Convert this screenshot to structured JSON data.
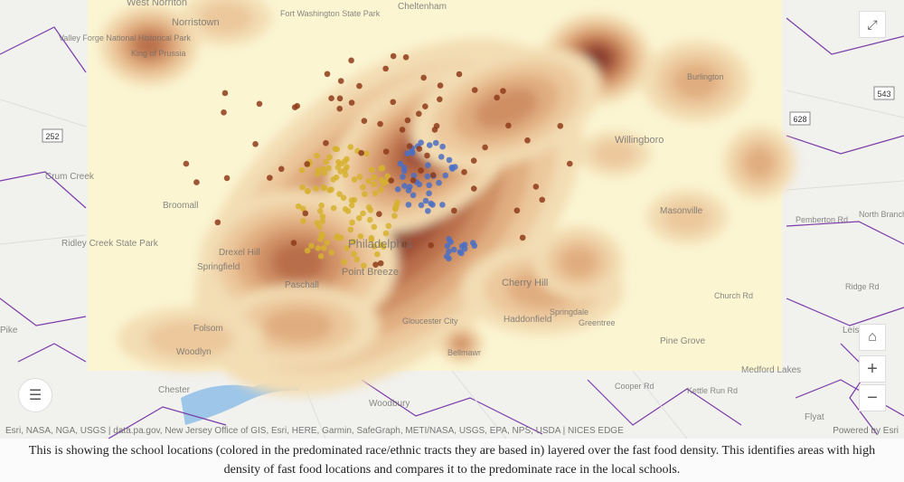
{
  "map": {
    "labels": [
      "West Norriton",
      "Norristown",
      "Fort Washington State Park",
      "Valley Forge National Historical Park",
      "King of Prussia",
      "Burlington",
      "Willingboro",
      "Crum Creek",
      "Broomall",
      "Ridley Creek State Park",
      "Springfield",
      "Drexel Hill",
      "Paschall",
      "Philadelphia",
      "Point Breeze",
      "Folsom",
      "Woodlyn",
      "Chester",
      "Woodbury",
      "Cherry Hill",
      "Haddonfield",
      "Gloucester City",
      "Masonville",
      "Pine Grove",
      "Springdale",
      "Greentree",
      "Bellmawr",
      "Medford Lakes",
      "Flyat",
      "Leis",
      "Pemberton Rd",
      "North Branch",
      "Church Rd",
      "Ridge Rd",
      "Cooper Rd",
      "Kettle Run Rd",
      "Pike",
      "Cheltenham"
    ],
    "route_shields": [
      "252",
      "543",
      "628"
    ],
    "attribution": "Esri, NASA, NGA, USGS | data.pa.gov, New Jersey Office of GIS, Esri, HERE, Garmin, SafeGraph, METI/NASA, USGS, EPA, NPS, USDA | NICES EDGE",
    "powered_by": "Powered by Esri"
  },
  "caption": "This is showing the school locations (colored in the predominated race/ethnic tracts they are based in) layered over the fast food density. This identifies areas with high density of fast food locations and compares it to the predominate race in the local schools."
}
